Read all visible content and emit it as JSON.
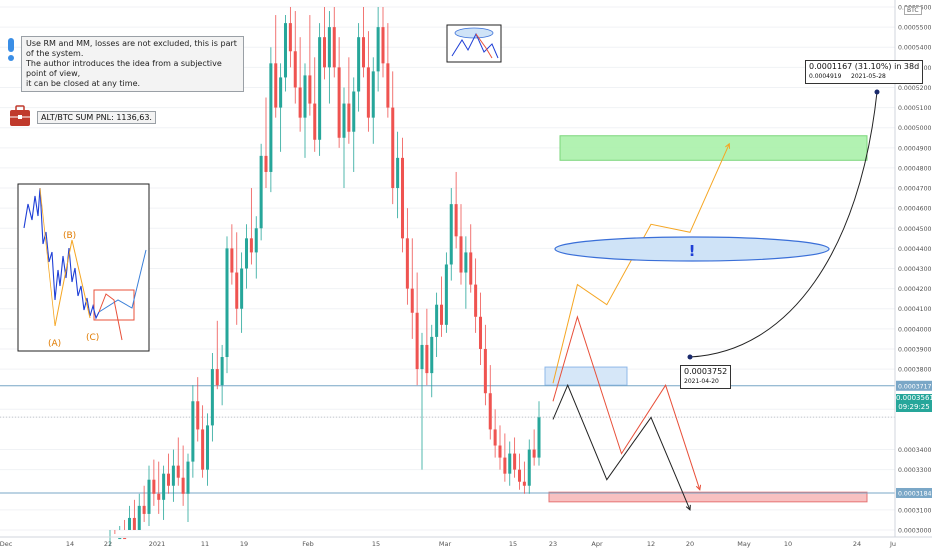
{
  "symbol": "BTC",
  "notes": {
    "disclaimer": "Use RM and MM, losses are not excluded, this is part of the system.\nThe author introduces the idea from a subjective point of view,\nit can be closed at any time.",
    "pnl": "ALT/BTC SUM PNL: 1136,63."
  },
  "callouts": {
    "target_main": "0.0001167 (31.10%) in 38d",
    "target_price": "0.0004919",
    "target_date": "2021-05-28",
    "entry_price": "0.0003752",
    "entry_date": "2021-04-20",
    "exclamation": "!"
  },
  "inset": {
    "label_b": "(B)",
    "label_a": "(A)",
    "label_c": "(C)"
  },
  "chart_data": {
    "type": "candlestick",
    "ylim": [
      0.0003,
      0.000561
    ],
    "y_tick_labels": [
      "0.0005600",
      "0.0005500",
      "0.0005400",
      "0.0005300",
      "0.0005200",
      "0.0005100",
      "0.0005000",
      "0.0004900",
      "0.0004800",
      "0.0004700",
      "0.0004600",
      "0.0004500",
      "0.0004400",
      "0.0004300",
      "0.0004200",
      "0.0004100",
      "0.0004000",
      "0.0003900",
      "0.0003800",
      "0.0003717",
      "0.0003600",
      "0.0003561",
      "0.0003400",
      "0.0003300",
      "0.0003184",
      "0.0003100",
      "0.0003000"
    ],
    "y_tick_values": [
      0.00056,
      0.00055,
      0.00054,
      0.00053,
      0.00052,
      0.00051,
      0.0005,
      0.00049,
      0.00048,
      0.00047,
      0.00046,
      0.00045,
      0.00044,
      0.00043,
      0.00042,
      0.00041,
      0.0004,
      0.00039,
      0.00038,
      0.0003717,
      0.00036,
      0.0003561,
      0.00034,
      0.00033,
      0.0003184,
      0.00031,
      0.0003
    ],
    "x_tick_labels": [
      "Dec",
      "14",
      "22",
      "2021",
      "11",
      "19",
      "Feb",
      "15",
      "Mar",
      "15",
      "23",
      "Apr",
      "12",
      "20",
      "May",
      "10",
      "24",
      "Ju"
    ],
    "current_price": "0.0003561",
    "countdown": "09:29:25",
    "levels": {
      "resistance": 0.0003717,
      "support": 0.0003184
    },
    "zones": [
      {
        "name": "target-zone",
        "from": 0.0004838,
        "to": 0.000496,
        "color": "#a5f0a5"
      },
      {
        "name": "entry-zone",
        "from": 0.000372,
        "to": 0.000381,
        "color": "#cfe3f7"
      },
      {
        "name": "stop-zone",
        "from": 0.000314,
        "to": 0.0003188,
        "color": "#f7b6b6"
      }
    ],
    "ohlc": [
      [
        0.00028,
        0.000292,
        0.000276,
        0.000288
      ],
      [
        0.000288,
        0.000298,
        0.000282,
        0.000284
      ],
      [
        0.000284,
        0.000302,
        0.00028,
        0.000296
      ],
      [
        0.000296,
        0.000305,
        0.000289,
        0.000292
      ],
      [
        0.000292,
        0.000312,
        0.000288,
        0.000306
      ],
      [
        0.000306,
        0.000315,
        0.000296,
        0.0003
      ],
      [
        0.0003,
        0.000318,
        0.000294,
        0.000312
      ],
      [
        0.000312,
        0.000322,
        0.000304,
        0.000308
      ],
      [
        0.000308,
        0.000332,
        0.000302,
        0.000325
      ],
      [
        0.000325,
        0.000335,
        0.000312,
        0.000318
      ],
      [
        0.000318,
        0.000334,
        0.000308,
        0.000315
      ],
      [
        0.000315,
        0.000332,
        0.000305,
        0.000328
      ],
      [
        0.000328,
        0.000338,
        0.000318,
        0.000322
      ],
      [
        0.000322,
        0.00034,
        0.000314,
        0.000332
      ],
      [
        0.000332,
        0.000346,
        0.000322,
        0.000326
      ],
      [
        0.000326,
        0.000342,
        0.000312,
        0.000318
      ],
      [
        0.000318,
        0.000338,
        0.000304,
        0.000334
      ],
      [
        0.000334,
        0.000372,
        0.000326,
        0.000364
      ],
      [
        0.000364,
        0.000376,
        0.000344,
        0.00035
      ],
      [
        0.00035,
        0.000362,
        0.000326,
        0.00033
      ],
      [
        0.00033,
        0.000358,
        0.000322,
        0.000352
      ],
      [
        0.000352,
        0.000388,
        0.000344,
        0.00038
      ],
      [
        0.00038,
        0.000404,
        0.00037,
        0.000372
      ],
      [
        0.000372,
        0.000392,
        0.000362,
        0.000386
      ],
      [
        0.000386,
        0.000446,
        0.000378,
        0.00044
      ],
      [
        0.00044,
        0.000452,
        0.000422,
        0.000428
      ],
      [
        0.000428,
        0.000448,
        0.000402,
        0.00041
      ],
      [
        0.00041,
        0.000438,
        0.000398,
        0.00043
      ],
      [
        0.00043,
        0.000452,
        0.00042,
        0.000445
      ],
      [
        0.000445,
        0.00047,
        0.000432,
        0.000438
      ],
      [
        0.000438,
        0.000456,
        0.000425,
        0.00045
      ],
      [
        0.00045,
        0.000492,
        0.000444,
        0.000486
      ],
      [
        0.000486,
        0.000515,
        0.00047,
        0.000478
      ],
      [
        0.000478,
        0.00054,
        0.000468,
        0.000532
      ],
      [
        0.000532,
        0.000556,
        0.000505,
        0.00051
      ],
      [
        0.00051,
        0.000532,
        0.000488,
        0.000525
      ],
      [
        0.000525,
        0.000556,
        0.000518,
        0.000552
      ],
      [
        0.000552,
        0.00056,
        0.00053,
        0.000538
      ],
      [
        0.000538,
        0.000558,
        0.000512,
        0.00052
      ],
      [
        0.00052,
        0.000545,
        0.000498,
        0.000505
      ],
      [
        0.000505,
        0.000532,
        0.000485,
        0.000526
      ],
      [
        0.000526,
        0.000556,
        0.000506,
        0.000512
      ],
      [
        0.000512,
        0.000535,
        0.000488,
        0.000494
      ],
      [
        0.000494,
        0.000552,
        0.000486,
        0.000545
      ],
      [
        0.000545,
        0.00056,
        0.000524,
        0.00053
      ],
      [
        0.00053,
        0.000558,
        0.000512,
        0.00055
      ],
      [
        0.00055,
        0.00056,
        0.000525,
        0.00053
      ],
      [
        0.00053,
        0.000545,
        0.00049,
        0.000495
      ],
      [
        0.000495,
        0.00052,
        0.00047,
        0.000512
      ],
      [
        0.000512,
        0.000535,
        0.000492,
        0.000498
      ],
      [
        0.000498,
        0.000525,
        0.000478,
        0.000518
      ],
      [
        0.000518,
        0.000552,
        0.000508,
        0.000545
      ],
      [
        0.000545,
        0.00056,
        0.000525,
        0.00053
      ],
      [
        0.00053,
        0.000548,
        0.000498,
        0.000505
      ],
      [
        0.000505,
        0.000535,
        0.000492,
        0.000528
      ],
      [
        0.000528,
        0.00056,
        0.000518,
        0.00055
      ],
      [
        0.00055,
        0.00056,
        0.000525,
        0.000532
      ],
      [
        0.000532,
        0.000552,
        0.000505,
        0.00051
      ],
      [
        0.00051,
        0.000528,
        0.000462,
        0.00047
      ],
      [
        0.00047,
        0.000498,
        0.000455,
        0.000485
      ],
      [
        0.000485,
        0.000495,
        0.000438,
        0.000445
      ],
      [
        0.000445,
        0.00046,
        0.000412,
        0.00042
      ],
      [
        0.00042,
        0.000445,
        0.000395,
        0.000408
      ],
      [
        0.000408,
        0.000428,
        0.000372,
        0.00038
      ],
      [
        0.00038,
        0.000398,
        0.00033,
        0.000392
      ],
      [
        0.000392,
        0.00041,
        0.000372,
        0.000378
      ],
      [
        0.000378,
        0.000402,
        0.000366,
        0.000396
      ],
      [
        0.000396,
        0.000418,
        0.000386,
        0.000412
      ],
      [
        0.000412,
        0.000426,
        0.000396,
        0.000402
      ],
      [
        0.000402,
        0.000438,
        0.000398,
        0.000432
      ],
      [
        0.000432,
        0.00047,
        0.000424,
        0.000462
      ],
      [
        0.000462,
        0.000478,
        0.00044,
        0.000446
      ],
      [
        0.000446,
        0.000462,
        0.000422,
        0.000428
      ],
      [
        0.000428,
        0.000446,
        0.00041,
        0.000438
      ],
      [
        0.000438,
        0.000452,
        0.000418,
        0.000422
      ],
      [
        0.000422,
        0.000435,
        0.000398,
        0.000406
      ],
      [
        0.000406,
        0.000418,
        0.000382,
        0.00039
      ],
      [
        0.00039,
        0.000402,
        0.000362,
        0.000368
      ],
      [
        0.000368,
        0.000382,
        0.000345,
        0.00035
      ],
      [
        0.00035,
        0.00036,
        0.000336,
        0.000342
      ],
      [
        0.000342,
        0.000352,
        0.00033,
        0.000336
      ],
      [
        0.000336,
        0.000348,
        0.000324,
        0.000328
      ],
      [
        0.000328,
        0.000344,
        0.000322,
        0.000338
      ],
      [
        0.000338,
        0.000346,
        0.000326,
        0.00033
      ],
      [
        0.00033,
        0.000338,
        0.00032,
        0.000324
      ],
      [
        0.000324,
        0.000334,
        0.000318,
        0.000322
      ],
      [
        0.000322,
        0.000345,
        0.000318,
        0.00034
      ],
      [
        0.00034,
        0.00035,
        0.000332,
        0.000336
      ],
      [
        0.000336,
        0.000364,
        0.000332,
        0.000356
      ]
    ],
    "projections": [
      {
        "name": "orange-path",
        "color": "#f5a623",
        "points": [
          [
            "2021-03-23",
            0.000373
          ],
          [
            "2021-03-28",
            0.000422
          ],
          [
            "2021-04-03",
            0.000412
          ],
          [
            "2021-04-12",
            0.000452
          ],
          [
            "2021-04-20",
            0.000448
          ],
          [
            "2021-04-28",
            0.000492
          ]
        ]
      },
      {
        "name": "red-path",
        "color": "#e8503a",
        "points": [
          [
            "2021-03-23",
            0.000364
          ],
          [
            "2021-03-28",
            0.000406
          ],
          [
            "2021-04-06",
            0.000338
          ],
          [
            "2021-04-15",
            0.000372
          ],
          [
            "2021-04-22",
            0.00032
          ]
        ]
      },
      {
        "name": "black-path",
        "color": "#222222",
        "points": [
          [
            "2021-03-23",
            0.000355
          ],
          [
            "2021-03-26",
            0.000372
          ],
          [
            "2021-04-03",
            0.000325
          ],
          [
            "2021-04-12",
            0.000356
          ],
          [
            "2021-04-20",
            0.00031
          ]
        ]
      }
    ]
  }
}
